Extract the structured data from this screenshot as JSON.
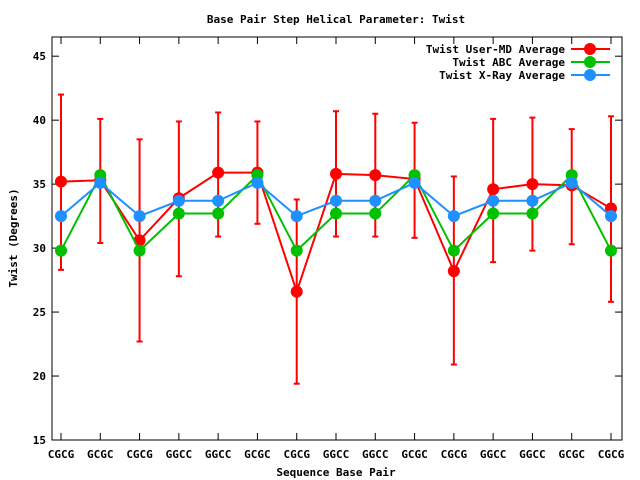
{
  "chart_data": {
    "type": "line",
    "title": "Base Pair Step Helical Parameter: Twist",
    "xlabel": "Sequence Base Pair",
    "ylabel": "Twist (Degrees)",
    "ylim": [
      15,
      46.5
    ],
    "yticks": [
      15,
      20,
      25,
      30,
      35,
      40,
      45
    ],
    "categories": [
      "CGCG",
      "GCGC",
      "CGCG",
      "GGCC",
      "GGCC",
      "GCGC",
      "CGCG",
      "GGCC",
      "GGCC",
      "GCGC",
      "CGCG",
      "GGCC",
      "GGCC",
      "GCGC",
      "CGCG"
    ],
    "legend_position": "top-right",
    "grid": false,
    "series": [
      {
        "name": "Twist User-MD Average",
        "color": "#ff0000",
        "values": [
          35.2,
          35.3,
          30.6,
          33.9,
          35.9,
          35.9,
          26.6,
          35.8,
          35.7,
          35.4,
          28.2,
          34.6,
          35.0,
          34.9,
          33.1
        ],
        "error_low": [
          28.3,
          30.4,
          22.7,
          27.8,
          30.9,
          31.9,
          19.4,
          30.9,
          30.9,
          30.8,
          20.9,
          28.9,
          29.8,
          30.3,
          25.8
        ],
        "error_high": [
          42.0,
          40.1,
          38.5,
          39.9,
          40.6,
          39.9,
          33.8,
          40.7,
          40.5,
          39.8,
          35.6,
          40.1,
          40.2,
          39.3,
          40.3
        ]
      },
      {
        "name": "Twist ABC Average",
        "color": "#00c000",
        "values": [
          29.8,
          35.7,
          29.8,
          32.7,
          32.7,
          35.7,
          29.8,
          32.7,
          32.7,
          35.7,
          29.8,
          32.7,
          32.7,
          35.7,
          29.8
        ]
      },
      {
        "name": "Twist X-Ray Average",
        "color": "#1e90ff",
        "values": [
          32.5,
          35.1,
          32.5,
          33.7,
          33.7,
          35.1,
          32.5,
          33.7,
          33.7,
          35.1,
          32.5,
          33.7,
          33.7,
          35.1,
          32.5
        ]
      }
    ]
  }
}
